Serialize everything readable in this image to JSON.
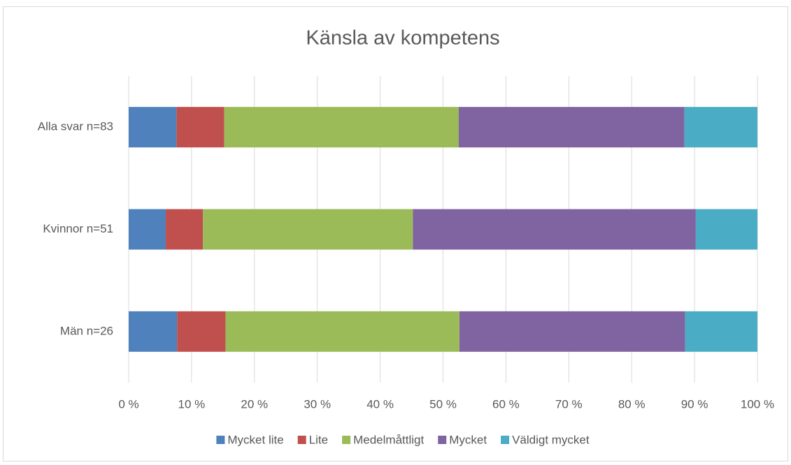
{
  "chart_data": {
    "type": "stacked_bar_horizontal",
    "title": "Känsla av kompetens",
    "categories": [
      "Alla svar n=83",
      "Kvinnor n=51",
      "Män n=26"
    ],
    "series": [
      {
        "name": "Mycket lite",
        "color": "#4f81bd",
        "values": [
          7.6,
          5.9,
          7.7
        ]
      },
      {
        "name": "Lite",
        "color": "#c0504d",
        "values": [
          7.6,
          5.9,
          7.7
        ]
      },
      {
        "name": "Medelmåttligt",
        "color": "#9bbb59",
        "values": [
          37.3,
          33.4,
          37.2
        ]
      },
      {
        "name": "Mycket",
        "color": "#8064a2",
        "values": [
          35.9,
          45.0,
          35.9
        ]
      },
      {
        "name": "Väldigt mycket",
        "color": "#4bacc6",
        "values": [
          11.6,
          9.8,
          11.5
        ]
      }
    ],
    "xlim": [
      0,
      100
    ],
    "xticks": [
      {
        "value": 0,
        "label": "0 %"
      },
      {
        "value": 10,
        "label": "10 %"
      },
      {
        "value": 20,
        "label": "20 %"
      },
      {
        "value": 30,
        "label": "30 %"
      },
      {
        "value": 40,
        "label": "40 %"
      },
      {
        "value": 50,
        "label": "50 %"
      },
      {
        "value": 60,
        "label": "60 %"
      },
      {
        "value": 70,
        "label": "70 %"
      },
      {
        "value": 80,
        "label": "80 %"
      },
      {
        "value": 90,
        "label": "90 %"
      },
      {
        "value": 100,
        "label": "100 %"
      }
    ],
    "grid": true,
    "legend": "bottom"
  }
}
